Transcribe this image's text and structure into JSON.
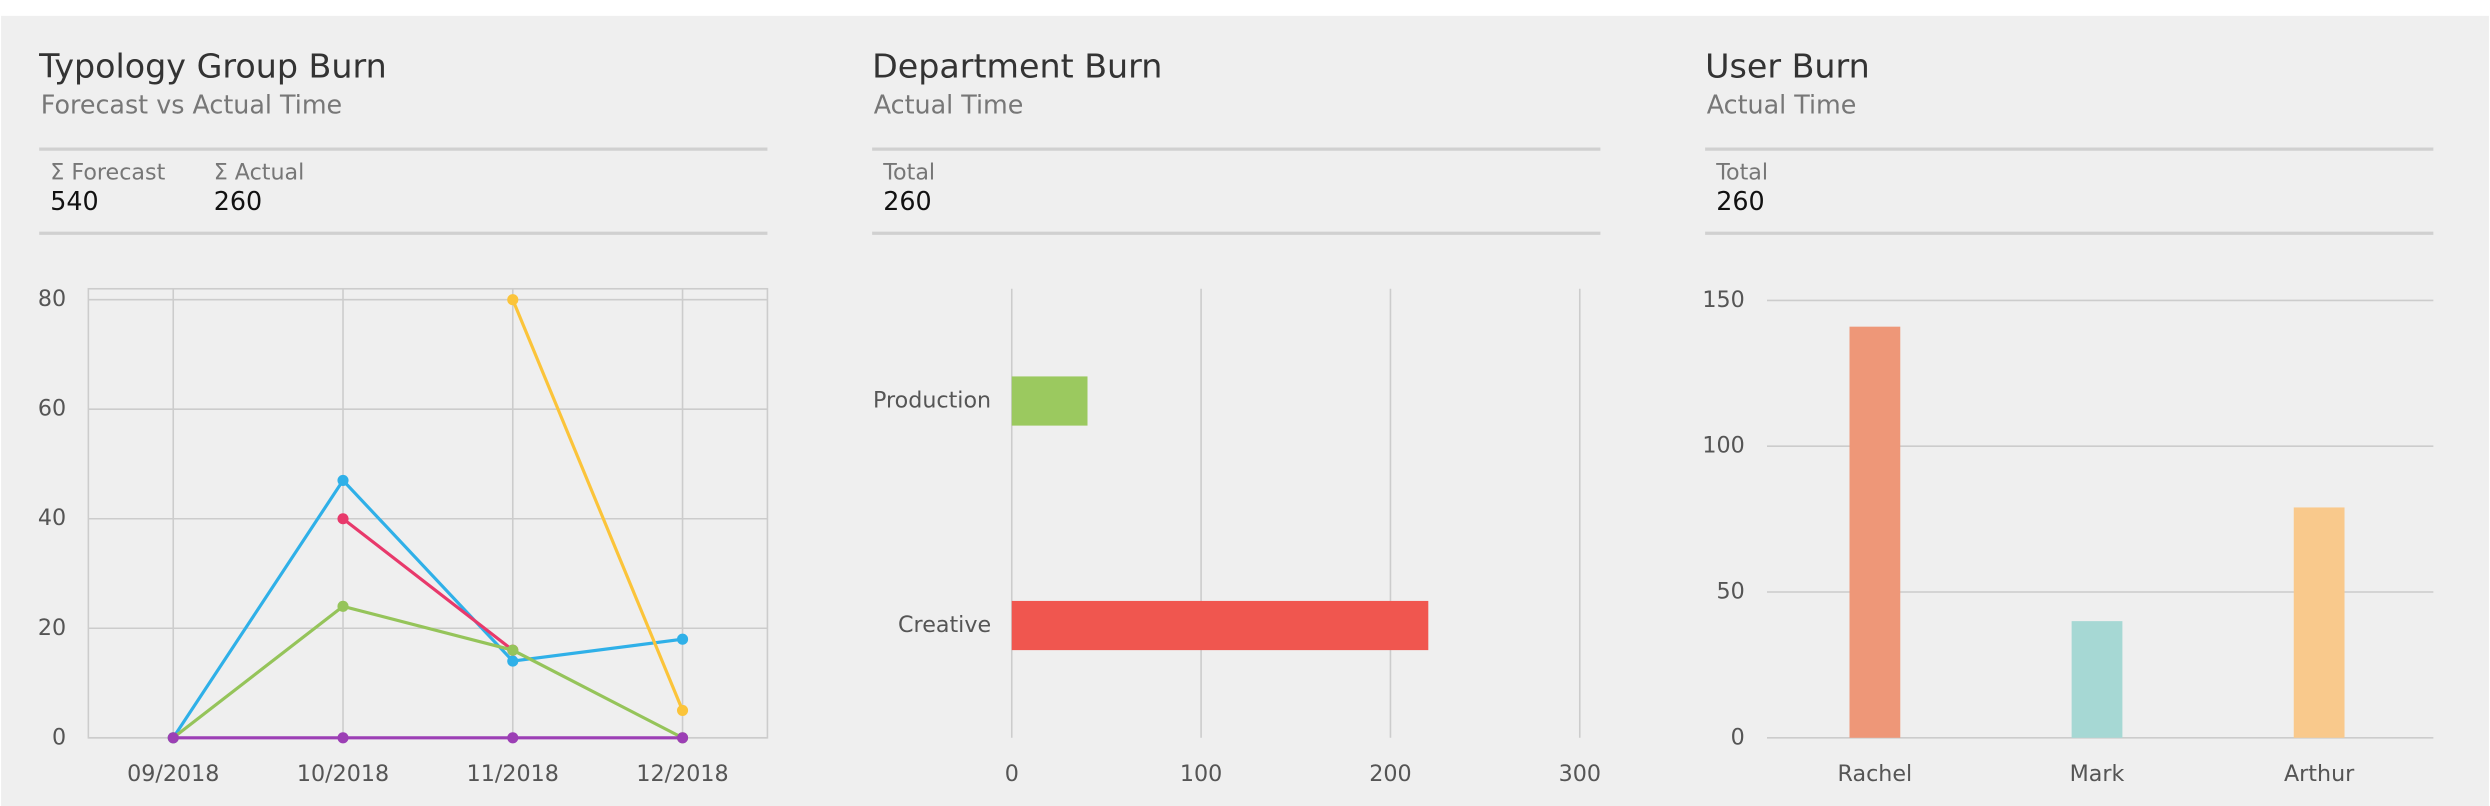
{
  "chart_data": [
    {
      "type": "line",
      "title": "Typology Group Burn",
      "subtitle": "Forecast vs Actual Time",
      "stats": [
        {
          "label": "Σ Forecast",
          "value": 540
        },
        {
          "label": "Σ Actual",
          "value": 260
        }
      ],
      "categories": [
        "09/2018",
        "10/2018",
        "11/2018",
        "12/2018"
      ],
      "series": [
        {
          "color": "#2fb0e8",
          "values": [
            0,
            47,
            14,
            18
          ]
        },
        {
          "color": "#e8396b",
          "values": [
            null,
            40,
            16,
            null
          ]
        },
        {
          "color": "#95c45a",
          "values": [
            0,
            24,
            16,
            0
          ]
        },
        {
          "color": "#fbc43a",
          "values": [
            null,
            null,
            80,
            5
          ]
        },
        {
          "color": "#9c3fb5",
          "values": [
            0,
            0,
            0,
            0
          ]
        }
      ],
      "ylim": [
        0,
        82
      ],
      "yticks": [
        0,
        20,
        40,
        60,
        80
      ],
      "grid": true
    },
    {
      "type": "hbar",
      "title": "Department Burn",
      "subtitle": "Actual Time",
      "stats": [
        {
          "label": "Total",
          "value": 260
        }
      ],
      "categories": [
        "Production",
        "Creative"
      ],
      "values": [
        40,
        220
      ],
      "colors": [
        "#9bc95f",
        "#f0564f"
      ],
      "xlim": [
        0,
        300
      ],
      "xticks": [
        0,
        100,
        200,
        300
      ],
      "grid": true
    },
    {
      "type": "bar",
      "title": "User Burn",
      "subtitle": "Actual Time",
      "stats": [
        {
          "label": "Total",
          "value": 260
        }
      ],
      "categories": [
        "Rachel",
        "Mark",
        "Arthur"
      ],
      "values": [
        141,
        40,
        79
      ],
      "colors": [
        "#ee9778",
        "#a6d8d4",
        "#f9c98c"
      ],
      "ylim": [
        0,
        154
      ],
      "yticks": [
        0,
        50,
        100,
        150
      ],
      "grid": true
    }
  ]
}
